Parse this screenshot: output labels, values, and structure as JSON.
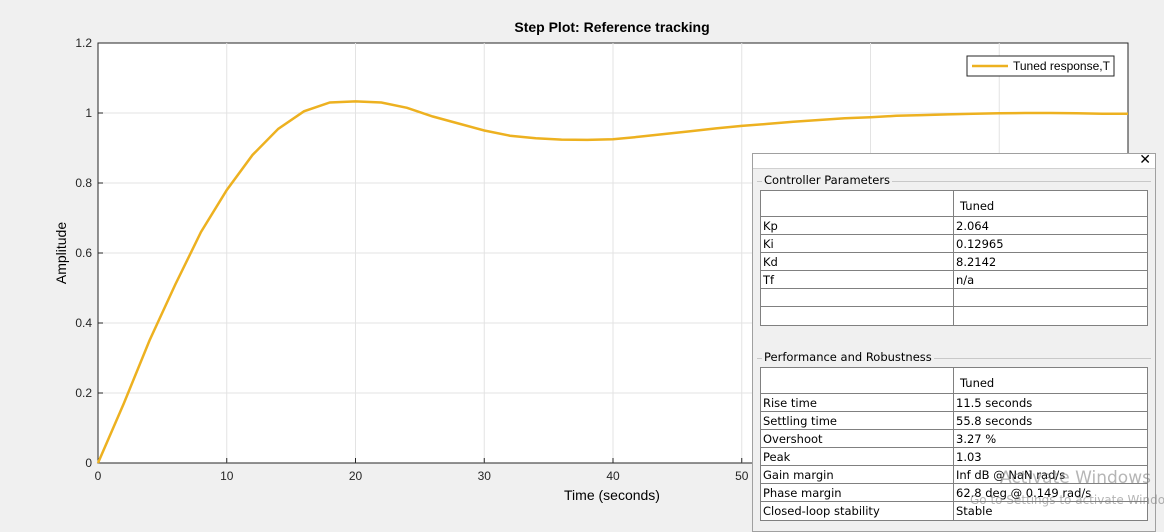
{
  "chart_data": {
    "type": "line",
    "title": "Step Plot: Reference tracking",
    "xlabel": "Time (seconds)",
    "ylabel": "Amplitude",
    "xlim": [
      0,
      80
    ],
    "ylim": [
      0,
      1.2
    ],
    "xticks": [
      "0",
      "10",
      "20",
      "30",
      "40",
      "50"
    ],
    "yticks": [
      "0",
      "0.2",
      "0.4",
      "0.6",
      "0.8",
      "1",
      "1.2"
    ],
    "grid": true,
    "legend_position": "top-right",
    "series": [
      {
        "name": "Tuned response,T",
        "color": "#edb120",
        "x": [
          0,
          2,
          4,
          6,
          8,
          10,
          12,
          14,
          16,
          18,
          20,
          22,
          24,
          26,
          28,
          30,
          32,
          34,
          36,
          38,
          40,
          42,
          44,
          46,
          48,
          50,
          52,
          54,
          56,
          58,
          60,
          62,
          64,
          66,
          68,
          70,
          72,
          74,
          76,
          78,
          80
        ],
        "y": [
          0,
          0.17,
          0.35,
          0.51,
          0.66,
          0.78,
          0.88,
          0.955,
          1.005,
          1.03,
          1.033,
          1.03,
          1.015,
          0.99,
          0.97,
          0.95,
          0.935,
          0.928,
          0.924,
          0.923,
          0.925,
          0.932,
          0.94,
          0.948,
          0.956,
          0.963,
          0.969,
          0.975,
          0.98,
          0.985,
          0.988,
          0.992,
          0.994,
          0.996,
          0.998,
          0.999,
          1.0,
          1.0,
          0.999,
          0.998,
          0.998
        ]
      }
    ]
  },
  "panel": {
    "close_glyph": "✕",
    "controller": {
      "title": "Controller Parameters",
      "header": "Tuned",
      "rows": [
        {
          "name": "Kp",
          "value": "2.064"
        },
        {
          "name": "Ki",
          "value": "0.12965"
        },
        {
          "name": "Kd",
          "value": "8.2142"
        },
        {
          "name": "Tf",
          "value": "n/a"
        },
        {
          "name": "",
          "value": ""
        },
        {
          "name": "",
          "value": ""
        }
      ]
    },
    "performance": {
      "title": "Performance and Robustness",
      "header": "Tuned",
      "rows": [
        {
          "name": "Rise time",
          "value": "11.5 seconds"
        },
        {
          "name": "Settling time",
          "value": "55.8 seconds"
        },
        {
          "name": "Overshoot",
          "value": "3.27 %"
        },
        {
          "name": "Peak",
          "value": "1.03"
        },
        {
          "name": "Gain margin",
          "value": "Inf dB @ NaN rad/s"
        },
        {
          "name": "Phase margin",
          "value": "62.8 deg @ 0.149 rad/s"
        },
        {
          "name": "Closed-loop stability",
          "value": "Stable"
        }
      ]
    }
  },
  "watermark": {
    "line1": "Activate Windows",
    "line2": "Go to Settings to activate Windows."
  }
}
